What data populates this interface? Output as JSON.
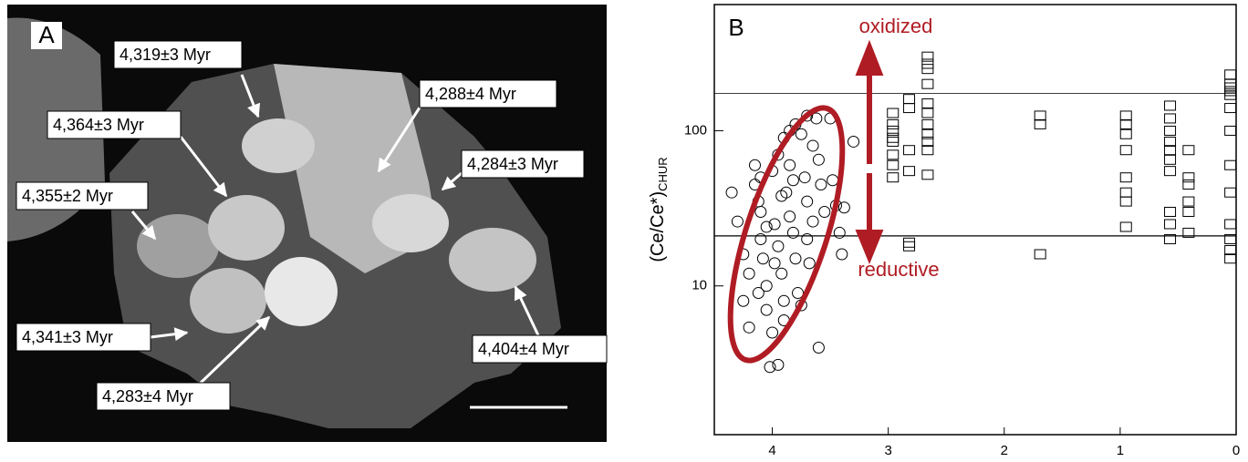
{
  "panel_a": {
    "letter": "A",
    "labels": [
      "4,319±3 Myr",
      "4,288±4 Myr",
      "4,364±3 Myr",
      "4,284±3 Myr",
      "4,355±2 Myr",
      "4,341±3 Myr",
      "4,404±4 Myr",
      "4,283±4 Myr"
    ]
  },
  "chart_data": {
    "type": "scatter",
    "letter": "B",
    "y_label": "(Ce/Ce*)",
    "y_label_sub": "CHUR",
    "annotations": [
      "oxidized",
      "reductive"
    ],
    "xlim": [
      4.5,
      0
    ],
    "xticks": [
      4,
      3,
      2,
      1,
      0
    ],
    "ylim": [
      1.1,
      650
    ],
    "yticks": [
      10,
      100
    ],
    "log_y": true,
    "hlines": [
      174,
      21
    ],
    "series": [
      {
        "marker": "circle",
        "color": "#000000",
        "x": [
          4.35,
          4.3,
          4.25,
          4.2,
          4.25,
          4.2,
          4.15,
          4.12,
          4.1,
          4.1,
          4.08,
          4.05,
          4.05,
          4.0,
          4.02,
          3.95,
          4.0,
          3.98,
          3.95,
          3.92,
          3.9,
          3.9,
          3.88,
          3.85,
          3.85,
          3.82,
          3.8,
          3.78,
          3.75,
          3.8,
          3.75,
          3.72,
          3.7,
          3.7,
          3.68,
          3.65,
          3.62,
          3.6,
          3.58,
          3.55,
          3.6,
          3.5,
          3.48,
          3.45,
          3.42,
          3.4,
          3.38,
          3.3,
          4.15,
          4.1,
          3.95,
          3.9,
          3.85,
          3.7,
          3.92,
          4.05,
          3.98,
          4.12,
          3.82,
          3.65
        ],
        "y": [
          40,
          26,
          16,
          12,
          8,
          5.4,
          45,
          35,
          30,
          20,
          15,
          10,
          7,
          5,
          3,
          3.1,
          55,
          25,
          18,
          12,
          8,
          6,
          40,
          60,
          28,
          22,
          15,
          9,
          7.5,
          110,
          95,
          50,
          35,
          20,
          14,
          80,
          120,
          65,
          45,
          30,
          4,
          120,
          48,
          33,
          22,
          16,
          32,
          85,
          60,
          50,
          70,
          90,
          100,
          125,
          38,
          24,
          14,
          9,
          48,
          26
        ]
      },
      {
        "marker": "square",
        "color": "#000000",
        "x": [
          2.96,
          2.96,
          2.96,
          2.96,
          2.96,
          2.96,
          2.96,
          2.96,
          2.82,
          2.82,
          2.82,
          2.82,
          2.82,
          2.82,
          2.66,
          2.66,
          2.66,
          2.66,
          2.66,
          2.66,
          2.66,
          2.66,
          2.66,
          2.66,
          2.66,
          1.69,
          1.69,
          1.69,
          0.95,
          0.95,
          0.95,
          0.95,
          0.95,
          0.95,
          0.95,
          0.95,
          0.57,
          0.57,
          0.57,
          0.57,
          0.57,
          0.57,
          0.57,
          0.57,
          0.57,
          0.57,
          0.41,
          0.41,
          0.41,
          0.41,
          0.41,
          0.41,
          0.05,
          0.05,
          0.05,
          0.05,
          0.05,
          0.05,
          0.05,
          0.05,
          0.05,
          0.05,
          0.05,
          0.05,
          0.05
        ],
        "y": [
          130,
          110,
          90,
          70,
          60,
          50,
          85,
          100,
          160,
          140,
          75,
          55,
          19,
          18,
          300,
          270,
          250,
          200,
          150,
          130,
          110,
          95,
          85,
          75,
          52,
          125,
          110,
          16,
          125,
          110,
          95,
          75,
          50,
          40,
          35,
          24,
          145,
          120,
          100,
          85,
          75,
          65,
          55,
          30,
          25,
          20,
          75,
          50,
          45,
          35,
          30,
          22,
          230,
          200,
          180,
          140,
          100,
          60,
          40,
          25,
          20,
          17,
          15,
          190,
          170
        ]
      }
    ]
  }
}
